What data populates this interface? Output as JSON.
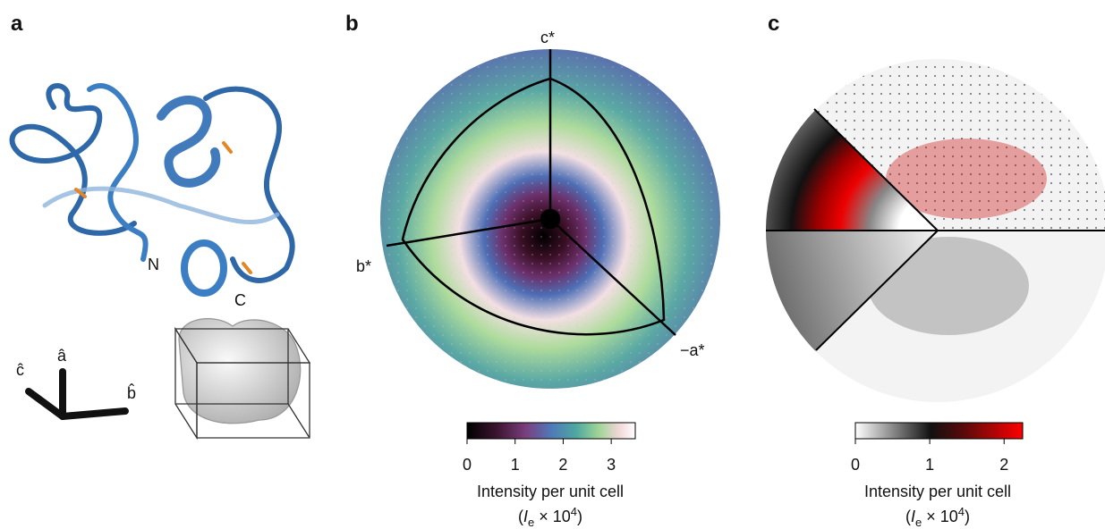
{
  "panels": [
    {
      "label": "a",
      "residue_labels": [
        "N",
        "C"
      ],
      "axes": [
        "ĉ",
        "â",
        "b̂"
      ]
    },
    {
      "label": "b",
      "axes": [
        "c*",
        "b*",
        "−a*"
      ],
      "colorbar": {
        "lim": [
          0,
          3.5
        ],
        "ticks": [
          0,
          1,
          2,
          3
        ],
        "title": "Intensity per unit cell",
        "unit": {
          "open": "(",
          "symbol": "I",
          "subscript": "e",
          "text": " × 10",
          "superscript": "4",
          "close": ")"
        }
      }
    },
    {
      "label": "c",
      "colorbar": {
        "lim": [
          0,
          2.25
        ],
        "ticks": [
          0,
          1,
          2
        ],
        "title": "Intensity per unit cell",
        "unit": {
          "open": "(",
          "symbol": "I",
          "subscript": "e",
          "text": " × 10",
          "superscript": "4",
          "close": ")"
        }
      }
    }
  ]
}
